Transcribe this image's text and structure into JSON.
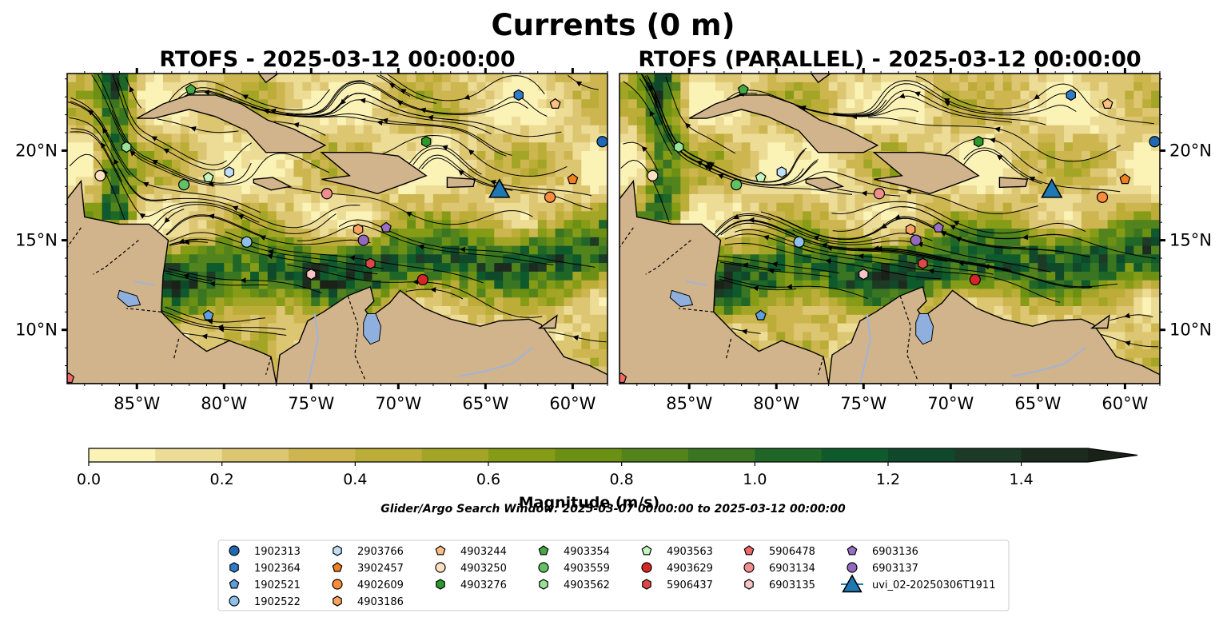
{
  "figure": {
    "title": "Currents (0 m)",
    "search_window": "Glider/Argo Search Window: 2025-03-07 00:00:00 to 2025-03-12 00:00:00"
  },
  "panels": [
    {
      "title": "RTOFS - 2025-03-12 00:00:00"
    },
    {
      "title": "RTOFS (PARALLEL) - 2025-03-12 00:00:00"
    }
  ],
  "map": {
    "lon_range": [
      -89,
      -58
    ],
    "lat_range": [
      7,
      24.3
    ],
    "lon_ticks": [
      -85,
      -80,
      -75,
      -70,
      -65,
      -60
    ],
    "lon_tick_labels": [
      "85°W",
      "80°W",
      "75°W",
      "70°W",
      "65°W",
      "60°W"
    ],
    "lat_ticks": [
      10,
      15,
      20
    ],
    "lat_tick_labels": [
      "10°N",
      "15°N",
      "20°N"
    ],
    "land_color": "#d2b48c",
    "lake_color": "#8fb0de",
    "river_color": "#9fb4d8"
  },
  "colorbar": {
    "label": "Magnitude (m/s)",
    "vmin": 0.0,
    "vmax": 1.5,
    "ticks": [
      0.0,
      0.2,
      0.4,
      0.6,
      0.8,
      1.0,
      1.2,
      1.4
    ],
    "tick_labels": [
      "0.0",
      "0.2",
      "0.4",
      "0.6",
      "0.8",
      "1.0",
      "1.2",
      "1.4"
    ],
    "colors": [
      "#fbf2b6",
      "#ecdc96",
      "#ddc672",
      "#cdb650",
      "#bcac38",
      "#a3a526",
      "#869c16",
      "#6c9014",
      "#53831c",
      "#3a7522",
      "#206727",
      "#0e5a2c",
      "#10482b",
      "#1c3a26",
      "#1d2b1e",
      "#1a2218"
    ]
  },
  "platforms": [
    {
      "id": "1902313",
      "marker": "circle",
      "color": "#1f69b4",
      "lon": -58.3,
      "lat": 20.5
    },
    {
      "id": "1902364",
      "marker": "hexagon",
      "color": "#2e7bc9",
      "lon": -63.1,
      "lat": 23.1
    },
    {
      "id": "1902521",
      "marker": "pentagon",
      "color": "#5f9fe0",
      "lon": -80.9,
      "lat": 10.8
    },
    {
      "id": "1902522",
      "marker": "circle",
      "color": "#8dc0ea",
      "lon": -78.7,
      "lat": 14.9
    },
    {
      "id": "2903766",
      "marker": "hexagon",
      "color": "#bfe0f7",
      "lon": -79.7,
      "lat": 18.8
    },
    {
      "id": "3902457",
      "marker": "pentagon",
      "color": "#f28020",
      "lon": -60.0,
      "lat": 18.4
    },
    {
      "id": "4902609",
      "marker": "circle",
      "color": "#fd8c3b",
      "lon": -61.3,
      "lat": 17.4
    },
    {
      "id": "4903186",
      "marker": "hexagon",
      "color": "#fda35f",
      "lon": -72.3,
      "lat": 15.6
    },
    {
      "id": "4903244",
      "marker": "pentagon",
      "color": "#fdbf86",
      "lon": -61.0,
      "lat": 22.6
    },
    {
      "id": "4903250",
      "marker": "circle",
      "color": "#fde0c2",
      "lon": -87.1,
      "lat": 18.6
    },
    {
      "id": "4903276",
      "marker": "hexagon",
      "color": "#2a9a2a",
      "lon": -68.4,
      "lat": 20.5
    },
    {
      "id": "4903354",
      "marker": "pentagon",
      "color": "#45a845",
      "lon": -81.9,
      "lat": 23.4
    },
    {
      "id": "4903559",
      "marker": "circle",
      "color": "#62c162",
      "lon": -82.3,
      "lat": 18.1
    },
    {
      "id": "4903562",
      "marker": "hexagon",
      "color": "#99e099",
      "lon": -85.6,
      "lat": 20.2
    },
    {
      "id": "4903563",
      "marker": "pentagon",
      "color": "#c4f7c0",
      "lon": -80.9,
      "lat": 18.5
    },
    {
      "id": "4903629",
      "marker": "circle",
      "color": "#d62628",
      "lon": -68.6,
      "lat": 12.8
    },
    {
      "id": "5906437",
      "marker": "hexagon",
      "color": "#e04848",
      "lon": -71.6,
      "lat": 13.7
    },
    {
      "id": "5906478",
      "marker": "pentagon",
      "color": "#f06868",
      "lon": -88.9,
      "lat": 7.3
    },
    {
      "id": "6903134",
      "marker": "circle",
      "color": "#f08e8e",
      "lon": -74.1,
      "lat": 17.6
    },
    {
      "id": "6903135",
      "marker": "hexagon",
      "color": "#fbc4c4",
      "lon": -75.0,
      "lat": 13.1
    },
    {
      "id": "6903136",
      "marker": "pentagon",
      "color": "#9870c8",
      "lon": -70.7,
      "lat": 15.7
    },
    {
      "id": "6903137",
      "marker": "circle",
      "color": "#9468bd",
      "lon": -72.0,
      "lat": 15.0
    },
    {
      "id": "uvi_02-20250306T1911",
      "marker": "triangle",
      "color": "#1f77b4",
      "lon": -64.2,
      "lat": 17.8
    }
  ]
}
